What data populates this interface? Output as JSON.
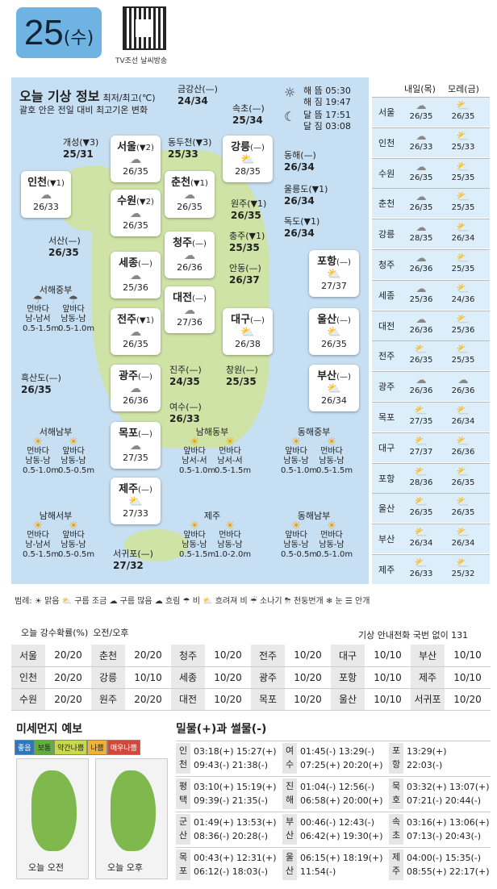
{
  "date": {
    "day": "25",
    "weekday": "(수)"
  },
  "qr_label": "TV조선 날씨방송",
  "title": "오늘 기상 정보",
  "title_unit": "최저/최고(℃)",
  "subtitle": "괄호 안은 전일 대비 최고기온 변화",
  "sun": {
    "rise": "해 뜸 05:30",
    "set": "해 짐 19:47",
    "moonrise": "달 뜸 17:51",
    "moonset": "달 짐 03:08"
  },
  "cards": [
    {
      "name": "인천",
      "delta": "(▼1)",
      "temp": "26/33",
      "w": "cloud"
    },
    {
      "name": "서울",
      "delta": "(▼2)",
      "temp": "26/35",
      "w": "cloud"
    },
    {
      "name": "수원",
      "delta": "(▼2)",
      "temp": "26/35",
      "w": "cloud"
    },
    {
      "name": "세종",
      "delta": "(—)",
      "temp": "25/36",
      "w": "cloud"
    },
    {
      "name": "전주",
      "delta": "(▼1)",
      "temp": "26/35",
      "w": "cloud"
    },
    {
      "name": "광주",
      "delta": "(—)",
      "temp": "26/36",
      "w": "cloud"
    },
    {
      "name": "목포",
      "delta": "(—)",
      "temp": "27/35",
      "w": "cloud"
    },
    {
      "name": "제주",
      "delta": "(—)",
      "temp": "27/33",
      "w": "sun"
    },
    {
      "name": "춘천",
      "delta": "(▼1)",
      "temp": "26/35",
      "w": "cloud"
    },
    {
      "name": "청주",
      "delta": "(—)",
      "temp": "26/36",
      "w": "cloud"
    },
    {
      "name": "대전",
      "delta": "(—)",
      "temp": "27/36",
      "w": "cloud"
    },
    {
      "name": "강릉",
      "delta": "(—)",
      "temp": "28/35",
      "w": "sun"
    },
    {
      "name": "대구",
      "delta": "(—)",
      "temp": "26/38",
      "w": "sun"
    },
    {
      "name": "포항",
      "delta": "(—)",
      "temp": "27/37",
      "w": "sun"
    },
    {
      "name": "울산",
      "delta": "(—)",
      "temp": "26/35",
      "w": "sun"
    },
    {
      "name": "부산",
      "delta": "(—)",
      "temp": "26/34",
      "w": "sun"
    }
  ],
  "places": [
    {
      "name": "금강산(—)",
      "temp": "24/34"
    },
    {
      "name": "속초(—)",
      "temp": "25/34"
    },
    {
      "name": "개성(▼3)",
      "temp": "25/31"
    },
    {
      "name": "동두천(▼3)",
      "temp": "25/33"
    },
    {
      "name": "동해(—)",
      "temp": "26/34"
    },
    {
      "name": "울릉도(▼1)",
      "temp": "26/34"
    },
    {
      "name": "원주(▼1)",
      "temp": "26/35"
    },
    {
      "name": "독도(▼1)",
      "temp": "26/34"
    },
    {
      "name": "충주(▼1)",
      "temp": "25/35"
    },
    {
      "name": "서산(—)",
      "temp": "26/35"
    },
    {
      "name": "안동(—)",
      "temp": "26/37"
    },
    {
      "name": "흑산도(—)",
      "temp": "26/35"
    },
    {
      "name": "진주(—)",
      "temp": "24/35"
    },
    {
      "name": "창원(—)",
      "temp": "25/35"
    },
    {
      "name": "여수(—)",
      "temp": "26/33"
    },
    {
      "name": "서귀포(—)",
      "temp": "27/32"
    }
  ],
  "seas": [
    {
      "name": "서해중부",
      "a": "먼바다",
      "b": "앞바다",
      "ar": "남-남서",
      "br": "남동-남",
      "aw": "0.5-1.5m",
      "bw": "0.5-1.0m",
      "icon": "rain"
    },
    {
      "name": "서해남부",
      "a": "먼바다",
      "b": "앞바다",
      "ar": "남동-남",
      "br": "남동-남",
      "aw": "0.5-1.0m",
      "bw": "0.5-0.5m",
      "icon": "sun"
    },
    {
      "name": "남해동부",
      "a": "앞바다",
      "b": "먼바다",
      "ar": "남서-서",
      "br": "남서-서",
      "aw": "0.5-1.0m",
      "bw": "0.5-1.5m",
      "icon": "sun"
    },
    {
      "name": "동해중부",
      "a": "앞바다",
      "b": "먼바다",
      "ar": "남동-남",
      "br": "남동-남",
      "aw": "0.5-1.0m",
      "bw": "0.5-1.5m",
      "icon": "sun"
    },
    {
      "name": "남해서부",
      "a": "먼바다",
      "b": "앞바다",
      "ar": "남-남서",
      "br": "남동-남",
      "aw": "0.5-1.5m",
      "bw": "0.5-0.5m",
      "icon": "sun"
    },
    {
      "name": "제주",
      "a": "앞바다",
      "b": "먼바다",
      "ar": "남동-남",
      "br": "남동-남",
      "aw": "0.5-1.5m",
      "bw": "1.0-2.0m",
      "icon": "sun"
    },
    {
      "name": "동해남부",
      "a": "앞바다",
      "b": "먼바다",
      "ar": "남동-남",
      "br": "남동-남",
      "aw": "0.5-0.5m",
      "bw": "0.5-1.0m",
      "icon": "sun"
    }
  ],
  "forecast": {
    "h1": "내일(목)",
    "h2": "모레(금)",
    "rows": [
      {
        "c": "서울",
        "t1": "26/35",
        "t2": "26/35",
        "w1": "cloud",
        "w2": "sun"
      },
      {
        "c": "인천",
        "t1": "26/33",
        "t2": "25/33",
        "w1": "cloud",
        "w2": "sun"
      },
      {
        "c": "수원",
        "t1": "26/35",
        "t2": "25/35",
        "w1": "cloud",
        "w2": "sun"
      },
      {
        "c": "춘천",
        "t1": "26/35",
        "t2": "25/35",
        "w1": "cloud",
        "w2": "sun"
      },
      {
        "c": "강릉",
        "t1": "28/35",
        "t2": "26/34",
        "w1": "cloud",
        "w2": "sun"
      },
      {
        "c": "청주",
        "t1": "26/36",
        "t2": "25/35",
        "w1": "cloud",
        "w2": "sun"
      },
      {
        "c": "세종",
        "t1": "25/36",
        "t2": "24/36",
        "w1": "cloud",
        "w2": "sun"
      },
      {
        "c": "대전",
        "t1": "26/36",
        "t2": "25/36",
        "w1": "cloud",
        "w2": "sun"
      },
      {
        "c": "전주",
        "t1": "26/35",
        "t2": "25/35",
        "w1": "sun",
        "w2": "sun"
      },
      {
        "c": "광주",
        "t1": "26/36",
        "t2": "26/36",
        "w1": "cloud",
        "w2": "cloud"
      },
      {
        "c": "목포",
        "t1": "27/35",
        "t2": "26/34",
        "w1": "sun",
        "w2": "sun"
      },
      {
        "c": "대구",
        "t1": "27/37",
        "t2": "26/36",
        "w1": "sun",
        "w2": "sun"
      },
      {
        "c": "포항",
        "t1": "28/36",
        "t2": "26/35",
        "w1": "sun",
        "w2": "sun"
      },
      {
        "c": "울산",
        "t1": "26/35",
        "t2": "26/35",
        "w1": "sun",
        "w2": "sun"
      },
      {
        "c": "부산",
        "t1": "26/34",
        "t2": "26/34",
        "w1": "sun",
        "w2": "sun"
      },
      {
        "c": "제주",
        "t1": "26/33",
        "t2": "25/32",
        "w1": "sun",
        "w2": "sun"
      }
    ]
  },
  "legend": "범례: ☀ 맑음 ⛅ 구름 조금 ☁ 구름 많음 ☁ 흐림 ☂ 비 ⛅ 흐려져 비 ☔ 소나기 ⛈ 천둥번개 ❄ 눈 ☰ 안개",
  "rain": {
    "title": "오늘 강수확률(%)",
    "sub": "오전/오후",
    "phone": "기상 안내전화 국번 없이 131",
    "rows": [
      [
        "서울",
        "20/20",
        "춘천",
        "20/20",
        "청주",
        "10/20",
        "전주",
        "10/20",
        "대구",
        "10/10",
        "부산",
        "10/10"
      ],
      [
        "인천",
        "20/20",
        "강릉",
        "10/10",
        "세종",
        "10/20",
        "광주",
        "10/20",
        "포항",
        "10/10",
        "제주",
        "10/10"
      ],
      [
        "수원",
        "20/20",
        "원주",
        "20/20",
        "대전",
        "10/20",
        "목포",
        "10/20",
        "울산",
        "10/10",
        "서귀포",
        "10/20"
      ]
    ]
  },
  "dust": {
    "title": "미세먼지 예보",
    "levels": [
      "좋음",
      "보통",
      "약간나쁨",
      "나쁨",
      "매우나쁨"
    ],
    "colors": [
      "#2a78c2",
      "#5fae3e",
      "#c9d94c",
      "#f0b234",
      "#d3483a"
    ],
    "am": "오늘 오전",
    "pm": "오늘 오후"
  },
  "tide": {
    "title": "밀물(+)과 썰물(-)",
    "rows": [
      [
        {
          "n": "인천",
          "a": "03:18(+) 15:27(+)",
          "b": "09:43(-) 21:38(-)"
        },
        {
          "n": "여수",
          "a": "01:45(-) 13:29(-)",
          "b": "07:25(+) 20:20(+)"
        },
        {
          "n": "포항",
          "a": "13:29(+)",
          "b": "22:03(-)"
        }
      ],
      [
        {
          "n": "평택",
          "a": "03:10(+) 15:19(+)",
          "b": "09:39(-) 21:35(-)"
        },
        {
          "n": "진해",
          "a": "01:04(-) 12:56(-)",
          "b": "06:58(+) 20:00(+)"
        },
        {
          "n": "묵호",
          "a": "03:32(+) 13:07(+)",
          "b": "07:21(-) 20:44(-)"
        }
      ],
      [
        {
          "n": "군산",
          "a": "01:49(+) 13:53(+)",
          "b": "08:36(-) 20:28(-)"
        },
        {
          "n": "부산",
          "a": "00:46(-) 12:43(-)",
          "b": "06:42(+) 19:30(+)"
        },
        {
          "n": "속초",
          "a": "03:16(+) 13:06(+)",
          "b": "07:13(-) 20:43(-)"
        }
      ],
      [
        {
          "n": "목포",
          "a": "00:43(+) 12:31(+)",
          "b": "06:12(-) 18:03(-)"
        },
        {
          "n": "울산",
          "a": "06:15(+) 18:19(+)",
          "b": "11:54(-)"
        },
        {
          "n": "제주",
          "a": "04:00(-) 15:35(-)",
          "b": "08:55(+) 22:17(+)"
        }
      ]
    ]
  }
}
